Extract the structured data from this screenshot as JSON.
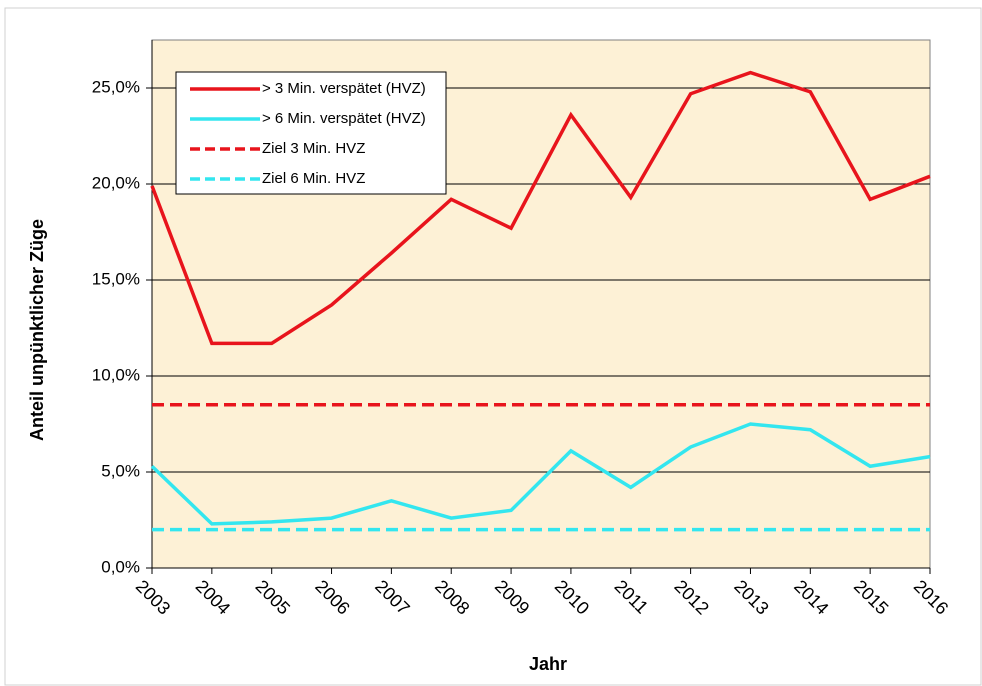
{
  "chart_data": {
    "type": "line",
    "x_label": "Jahr",
    "y_label": "Anteil unpünktlicher Züge",
    "categories": [
      "2003",
      "2004",
      "2005",
      "2006",
      "2007",
      "2008",
      "2009",
      "2010",
      "2011",
      "2012",
      "2013",
      "2014",
      "2015",
      "2016"
    ],
    "series": [
      {
        "name": "> 3 Min. verspätet (HVZ)",
        "color": "#e8141c",
        "dash": false,
        "values": [
          19.9,
          11.7,
          11.7,
          13.7,
          16.4,
          19.2,
          17.7,
          23.6,
          19.3,
          24.7,
          25.8,
          24.8,
          19.2,
          20.4
        ]
      },
      {
        "name": "> 6 Min. verspätet (HVZ)",
        "color": "#33e6ef",
        "dash": false,
        "values": [
          5.3,
          2.3,
          2.4,
          2.6,
          3.5,
          2.6,
          3.0,
          6.1,
          4.2,
          6.3,
          7.5,
          7.2,
          5.3,
          5.8
        ]
      },
      {
        "name": "Ziel 3 Min. HVZ",
        "color": "#e8141c",
        "dash": true,
        "values": [
          8.5,
          8.5,
          8.5,
          8.5,
          8.5,
          8.5,
          8.5,
          8.5,
          8.5,
          8.5,
          8.5,
          8.5,
          8.5,
          8.5
        ]
      },
      {
        "name": "Ziel 6 Min. HVZ",
        "color": "#33e6ef",
        "dash": true,
        "values": [
          2.0,
          2.0,
          2.0,
          2.0,
          2.0,
          2.0,
          2.0,
          2.0,
          2.0,
          2.0,
          2.0,
          2.0,
          2.0,
          2.0
        ]
      }
    ],
    "ylim": [
      0,
      27.5
    ],
    "yticks": [
      {
        "value": 0,
        "label": "0,0%"
      },
      {
        "value": 5,
        "label": "5,0%"
      },
      {
        "value": 10,
        "label": "10,0%"
      },
      {
        "value": 15,
        "label": "15,0%"
      },
      {
        "value": 20,
        "label": "20,0%"
      },
      {
        "value": 25,
        "label": "25,0%"
      }
    ],
    "grid": true,
    "legend": "top-left",
    "plot_background": "#fdf1d6"
  }
}
